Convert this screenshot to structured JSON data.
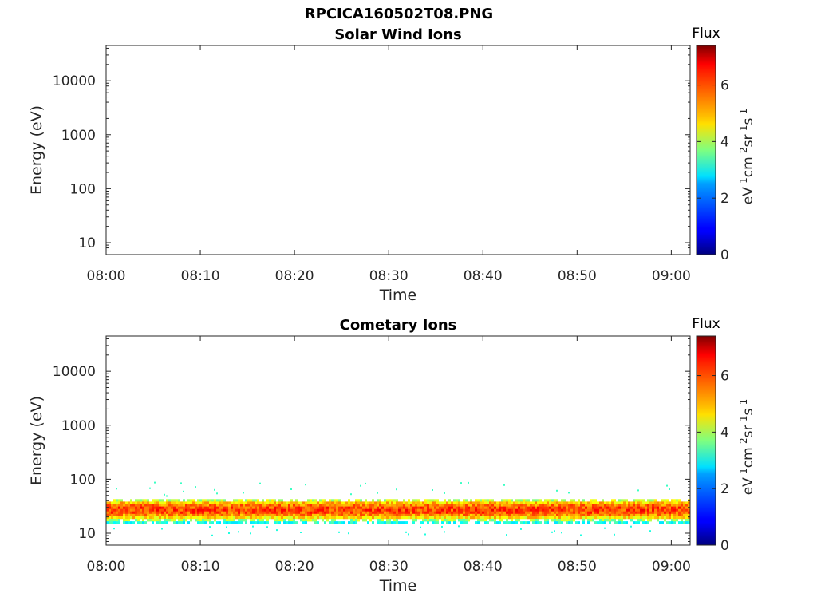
{
  "figure": {
    "title": "RPCICA160502T08.PNG"
  },
  "chart_data": [
    {
      "type": "heatmap",
      "title": "Solar Wind Ions",
      "xlabel": "Time",
      "ylabel": "Energy (eV)",
      "x_ticks": [
        "08:00",
        "08:10",
        "08:20",
        "08:30",
        "08:40",
        "08:50",
        "09:00"
      ],
      "x_range": [
        "08:00",
        "09:02"
      ],
      "y_scale": "log",
      "y_ticks": [
        10,
        100,
        1000,
        10000
      ],
      "y_tick_labels": [
        "10",
        "100",
        "1000",
        "10000"
      ],
      "y_range": [
        6,
        45000
      ],
      "colorbar": {
        "label": "Flux",
        "units": "eV-1cm-2sr-1s-1",
        "ticks": [
          0,
          2,
          4,
          6
        ],
        "range": [
          0,
          7.4
        ],
        "colormap": "jet"
      },
      "band": null
    },
    {
      "type": "heatmap",
      "title": "Cometary Ions",
      "xlabel": "Time",
      "ylabel": "Energy (eV)",
      "x_ticks": [
        "08:00",
        "08:10",
        "08:20",
        "08:30",
        "08:40",
        "08:50",
        "09:00"
      ],
      "x_range": [
        "08:00",
        "09:02"
      ],
      "y_scale": "log",
      "y_ticks": [
        10,
        100,
        1000,
        10000
      ],
      "y_tick_labels": [
        "10",
        "100",
        "1000",
        "10000"
      ],
      "y_range": [
        6,
        45000
      ],
      "colorbar": {
        "label": "Flux",
        "units": "eV-1cm-2sr-1s-1",
        "ticks": [
          0,
          2,
          4,
          6
        ],
        "range": [
          0,
          7.4
        ],
        "colormap": "jet"
      },
      "band": {
        "energy_center": 27,
        "energy_low": 16,
        "energy_high": 40,
        "peak_flux": 6.0,
        "edge_flux": 3.0
      }
    }
  ]
}
